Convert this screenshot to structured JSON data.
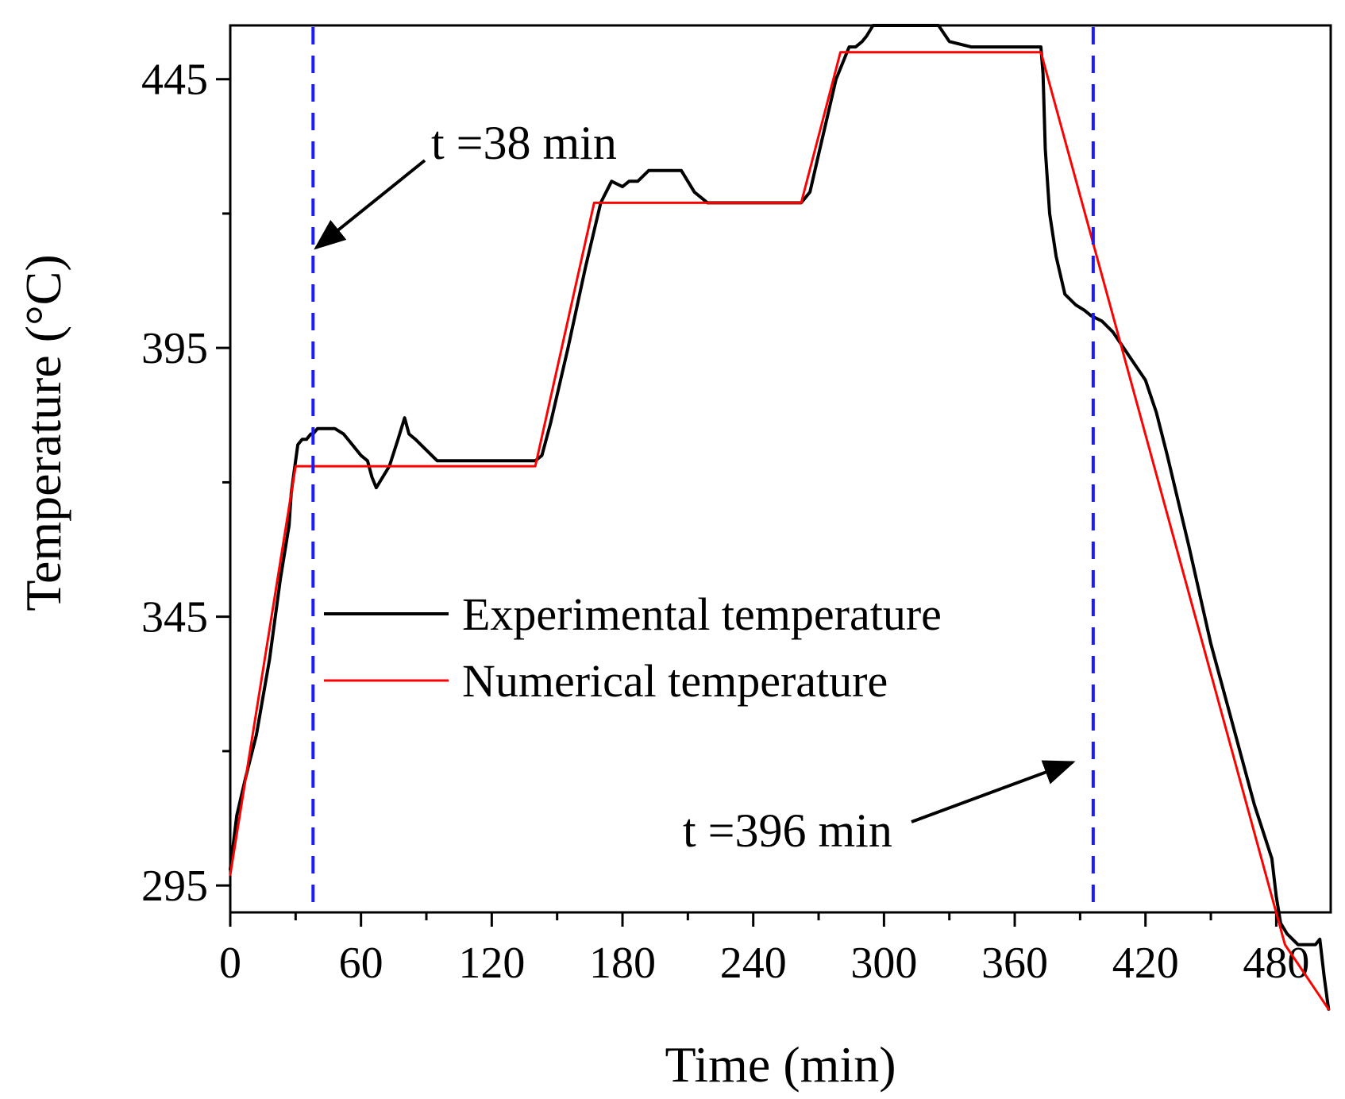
{
  "chart_data": {
    "type": "line",
    "xlabel": "Time (min)",
    "ylabel": "Temperature (°C)",
    "xlim": [
      0,
      505
    ],
    "ylim": [
      290,
      455
    ],
    "xticks": [
      0,
      60,
      120,
      180,
      240,
      300,
      360,
      420,
      480
    ],
    "yticks": [
      295,
      345,
      395,
      445
    ],
    "x_minor_ticks": [
      30,
      90,
      150,
      210,
      270,
      330,
      390,
      450
    ],
    "y_minor_ticks": [
      320,
      370,
      420
    ],
    "legend": {
      "placement": "center-left"
    },
    "colors": {
      "experimental": "#000000",
      "numerical": "#ff0000",
      "marker_line": "#1a1aff"
    },
    "series": [
      {
        "name": "Experimental temperature",
        "color": "#000000",
        "x": [
          0,
          3,
          7,
          12,
          18,
          23,
          27,
          28,
          30,
          31,
          33,
          35,
          37,
          38,
          40,
          44,
          48,
          52,
          56,
          60,
          63,
          65,
          67,
          70,
          73,
          77,
          80,
          82,
          85,
          90,
          95,
          100,
          115,
          140,
          143,
          147,
          155,
          163,
          170,
          175,
          180,
          183,
          187,
          192,
          200,
          207,
          213,
          219,
          225,
          262,
          266,
          270,
          278,
          282,
          284,
          287,
          290,
          292,
          295,
          300,
          310,
          318,
          325,
          330,
          340,
          350,
          372,
          373,
          374,
          376,
          379,
          383,
          388,
          392,
          395,
          400,
          405,
          410,
          420,
          425,
          430,
          440,
          450,
          460,
          470,
          478,
          480,
          482,
          485,
          490,
          494,
          496,
          498,
          500,
          502,
          504
        ],
        "y": [
          298,
          308,
          315,
          323,
          337,
          352,
          362,
          368,
          374,
          377,
          378,
          378,
          379,
          379,
          380,
          380,
          380,
          379,
          377,
          375,
          374,
          371,
          369,
          371,
          373,
          378,
          382,
          379,
          378,
          376,
          374,
          374,
          374,
          374,
          375,
          381,
          395,
          410,
          422,
          426,
          425,
          426,
          426,
          428,
          428,
          428,
          424,
          422,
          422,
          422,
          424,
          431,
          445,
          449,
          451,
          451,
          452,
          453,
          455,
          455,
          455,
          455,
          455,
          452,
          451,
          451,
          451,
          446,
          432,
          420,
          412,
          405,
          403,
          402,
          401,
          400,
          398,
          395,
          389,
          383,
          375,
          358,
          340,
          325,
          310,
          300,
          293,
          288,
          286,
          284,
          284,
          284,
          284,
          285,
          278,
          272
        ]
      },
      {
        "name": "Numerical temperature",
        "color": "#ff0000",
        "x": [
          0,
          30,
          140,
          167,
          262,
          280,
          372,
          484,
          504
        ],
        "y": [
          297,
          373,
          373,
          422,
          422,
          450,
          450,
          284,
          272
        ]
      }
    ],
    "annotations": [
      {
        "label": "t =38 min",
        "x": 38
      },
      {
        "label": "t =396 min",
        "x": 396
      }
    ]
  }
}
